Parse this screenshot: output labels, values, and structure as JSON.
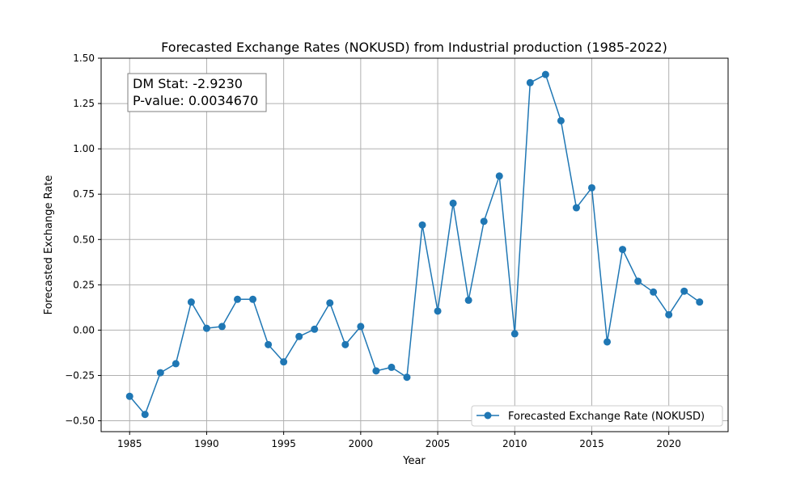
{
  "chart_data": {
    "type": "line",
    "title": "Forecasted Exchange Rates (NOKUSD) from Industrial production (1985-2022)",
    "xlabel": "Year",
    "ylabel": "Forecasted Exchange Rate",
    "xlim": [
      1983.15,
      2023.85
    ],
    "ylim": [
      -0.56,
      1.5
    ],
    "xticks": [
      1985,
      1990,
      1995,
      2000,
      2005,
      2010,
      2015,
      2020
    ],
    "yticks": [
      -0.5,
      -0.25,
      0.0,
      0.25,
      0.5,
      0.75,
      1.0,
      1.25,
      1.5
    ],
    "ytick_labels": [
      "−0.50",
      "−0.25",
      "0.00",
      "0.25",
      "0.50",
      "0.75",
      "1.00",
      "1.25",
      "1.50"
    ],
    "grid": true,
    "legend_position": "lower-right",
    "series": [
      {
        "name": "Forecasted Exchange Rate (NOKUSD)",
        "color": "#1f77b4",
        "marker": "circle",
        "x": [
          1985,
          1986,
          1987,
          1988,
          1989,
          1990,
          1991,
          1992,
          1993,
          1994,
          1995,
          1996,
          1997,
          1998,
          1999,
          2000,
          2001,
          2002,
          2003,
          2004,
          2005,
          2006,
          2007,
          2008,
          2009,
          2010,
          2011,
          2012,
          2013,
          2014,
          2015,
          2016,
          2017,
          2018,
          2019,
          2020,
          2021,
          2022
        ],
        "y": [
          -0.365,
          -0.465,
          -0.235,
          -0.185,
          0.155,
          0.01,
          0.02,
          0.17,
          0.17,
          -0.08,
          -0.175,
          -0.035,
          0.005,
          0.15,
          -0.08,
          0.02,
          -0.225,
          -0.205,
          -0.26,
          0.58,
          0.105,
          0.7,
          0.165,
          0.6,
          0.85,
          -0.02,
          1.365,
          1.41,
          1.155,
          0.675,
          0.785,
          -0.065,
          0.445,
          0.27,
          0.21,
          0.085,
          0.215,
          0.155
        ]
      }
    ],
    "annotation": {
      "lines": [
        "DM Stat: -2.9230",
        "P-value: 0.0034670"
      ],
      "position": "top-left"
    }
  }
}
